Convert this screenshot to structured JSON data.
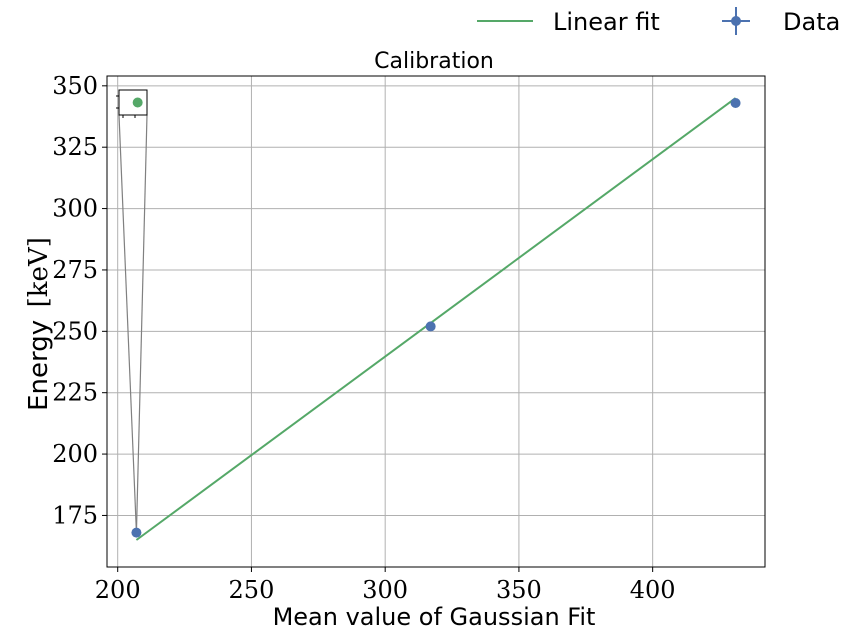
{
  "legend": {
    "placement": "top-right",
    "entries": [
      {
        "label": "Linear fit",
        "marker": "line",
        "color": "#55a868"
      },
      {
        "label": "Data",
        "marker": "errorbar-point",
        "color": "#4c72b0"
      }
    ]
  },
  "chart_data": {
    "type": "scatter",
    "title": "Calibration",
    "xlabel": "Mean value of Gaussian Fit",
    "ylabel_text": "Energy",
    "ylabel_unit": "[keV]",
    "xlim": [
      196,
      442
    ],
    "ylim": [
      154,
      354
    ],
    "xticks": [
      200,
      250,
      300,
      350,
      400
    ],
    "yticks": [
      175,
      200,
      225,
      250,
      275,
      300,
      325,
      350
    ],
    "grid": true,
    "series": [
      {
        "name": "Data",
        "kind": "points",
        "color": "#4c72b0",
        "x": [
          207,
          317,
          431
        ],
        "y": [
          168,
          252,
          343
        ]
      },
      {
        "name": "Linear fit",
        "kind": "line",
        "color": "#55a868",
        "x": [
          207,
          431
        ],
        "y": [
          165,
          345
        ]
      }
    ],
    "inset": {
      "x_range": [
        196,
        211
      ],
      "y_range": [
        337,
        349
      ],
      "points": [
        {
          "x": 206,
          "y": 343,
          "color": "#55a868"
        }
      ],
      "connector_color": "#808080"
    }
  }
}
